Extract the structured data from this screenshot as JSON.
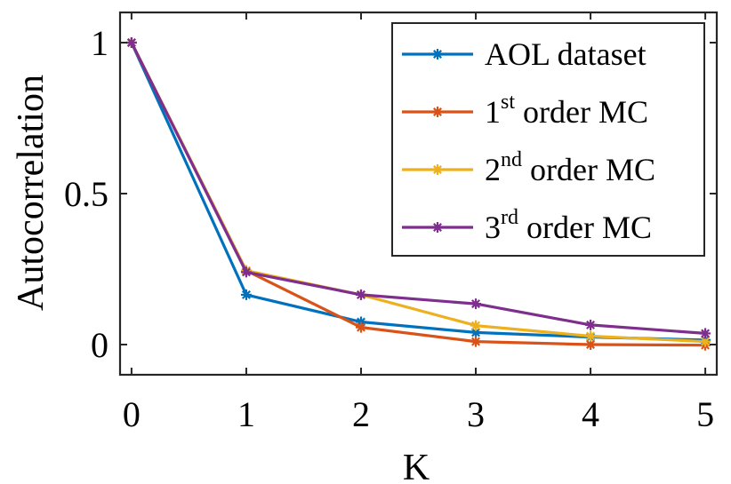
{
  "chart_data": {
    "type": "line",
    "title": "",
    "xlabel": "K",
    "ylabel": "Autocorrelation",
    "xlim": [
      -0.1,
      5.1
    ],
    "ylim": [
      -0.1,
      1.1
    ],
    "xticks": [
      0,
      1,
      2,
      3,
      4,
      5
    ],
    "xtick_labels": [
      "0",
      "1",
      "2",
      "3",
      "4",
      "5"
    ],
    "yticks": [
      0,
      0.5,
      1
    ],
    "ytick_labels": [
      "0",
      "0.5",
      "1"
    ],
    "x": [
      0,
      1,
      2,
      3,
      4,
      5
    ],
    "grid": false,
    "legend_position": "top-right",
    "series": [
      {
        "name": "AOL dataset",
        "label_base": "AOL dataset",
        "label_sup": "",
        "label_rest": "",
        "color": "#0072BD",
        "marker": "asterisk",
        "values": [
          1.0,
          0.165,
          0.075,
          0.04,
          0.025,
          0.015
        ]
      },
      {
        "name": "1st order MC",
        "label_base": "1",
        "label_sup": "st",
        "label_rest": " order MC",
        "color": "#D95319",
        "marker": "asterisk",
        "values": [
          1.0,
          0.245,
          0.057,
          0.01,
          0.0,
          -0.002
        ]
      },
      {
        "name": "2nd order MC",
        "label_base": "2",
        "label_sup": "nd",
        "label_rest": " order MC",
        "color": "#EDB120",
        "marker": "asterisk",
        "values": [
          1.0,
          0.245,
          0.165,
          0.063,
          0.028,
          0.01
        ]
      },
      {
        "name": "3rd order MC",
        "label_base": "3",
        "label_sup": "rd",
        "label_rest": " order MC",
        "color": "#7E2F8E",
        "marker": "asterisk",
        "values": [
          1.0,
          0.24,
          0.165,
          0.135,
          0.065,
          0.037
        ]
      }
    ]
  }
}
